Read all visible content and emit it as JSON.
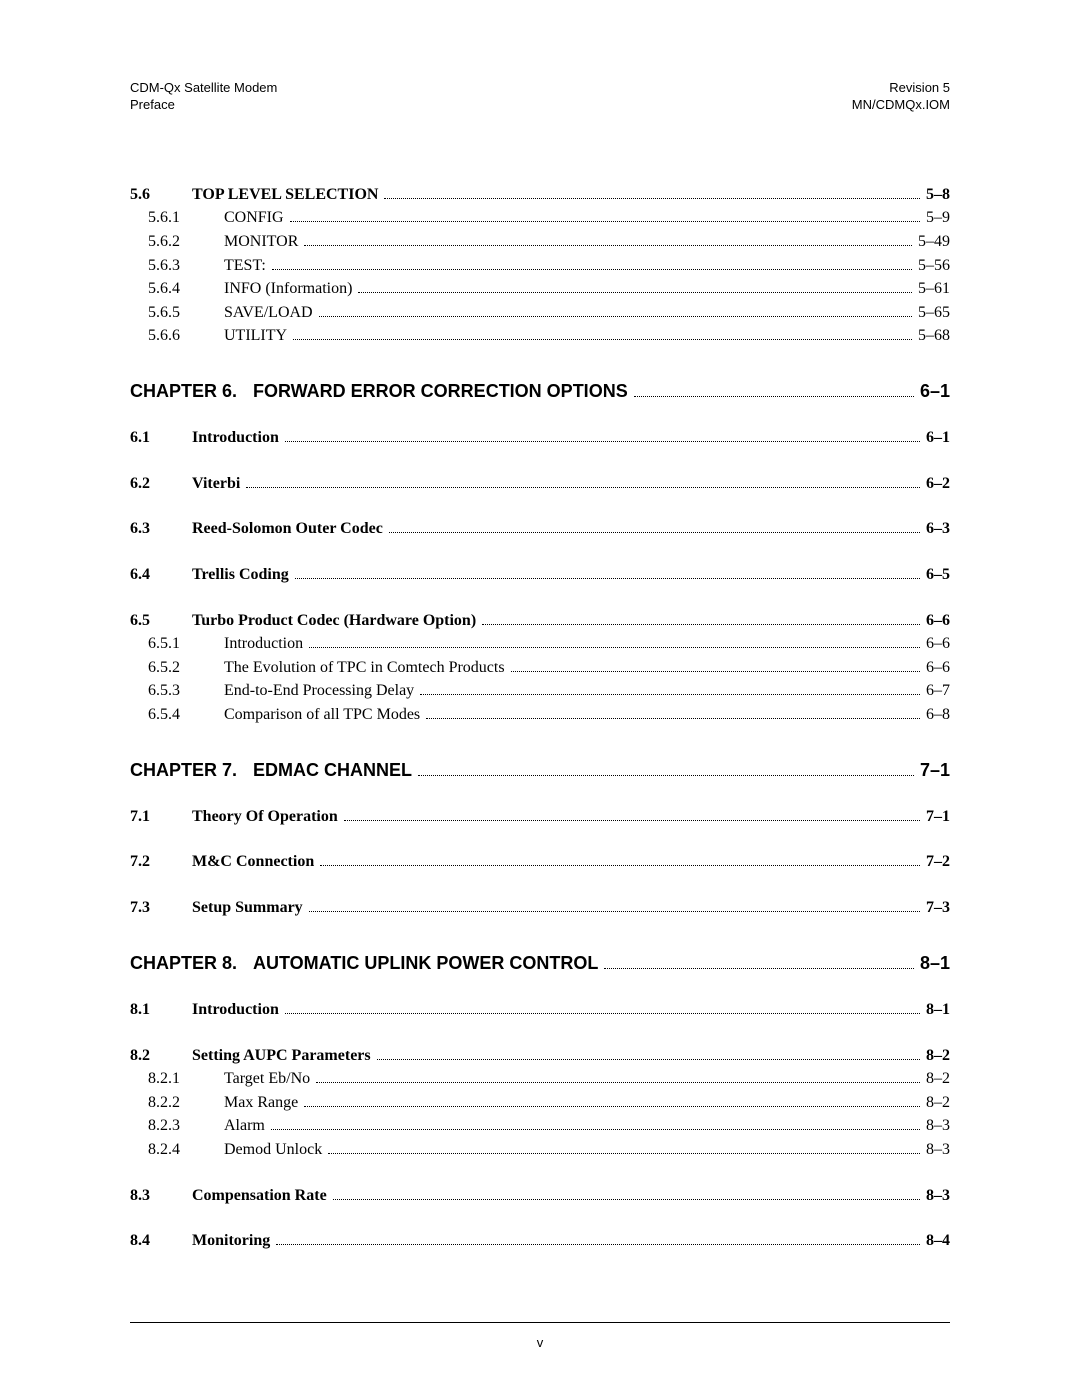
{
  "header": {
    "left_line1": "CDM-Qx Satellite Modem",
    "left_line2": "Preface",
    "right_line1": "Revision 5",
    "right_line2": "MN/CDMQx.IOM"
  },
  "entries": [
    {
      "type": "line",
      "indent": 0,
      "bold": true,
      "num": "5.6",
      "text": "TOP LEVEL SELECTION",
      "page": "5–8"
    },
    {
      "type": "line",
      "indent": 1,
      "bold": false,
      "num": "5.6.1",
      "text": "CONFIG",
      "page": "5–9"
    },
    {
      "type": "line",
      "indent": 1,
      "bold": false,
      "num": "5.6.2",
      "text": "MONITOR",
      "page": "5–49"
    },
    {
      "type": "line",
      "indent": 1,
      "bold": false,
      "num": "5.6.3",
      "text": "TEST:",
      "page": "5–56"
    },
    {
      "type": "line",
      "indent": 1,
      "bold": false,
      "num": "5.6.4",
      "text": "INFO (Information)",
      "page": "5–61"
    },
    {
      "type": "line",
      "indent": 1,
      "bold": false,
      "num": "5.6.5",
      "text": "SAVE/LOAD",
      "page": "5–65"
    },
    {
      "type": "line",
      "indent": 1,
      "bold": false,
      "num": "5.6.6",
      "text": "UTILITY",
      "page": "5–68"
    },
    {
      "type": "gap",
      "size": "large"
    },
    {
      "type": "chapter",
      "num": "CHAPTER 6.",
      "text": "FORWARD ERROR CORRECTION OPTIONS",
      "page": "6–1"
    },
    {
      "type": "gap",
      "size": "med"
    },
    {
      "type": "line",
      "indent": 0,
      "bold": true,
      "num": "6.1",
      "text": "Introduction",
      "page": "6–1"
    },
    {
      "type": "gap",
      "size": "med"
    },
    {
      "type": "line",
      "indent": 0,
      "bold": true,
      "num": "6.2",
      "text": "Viterbi",
      "page": "6–2"
    },
    {
      "type": "gap",
      "size": "med"
    },
    {
      "type": "line",
      "indent": 0,
      "bold": true,
      "num": "6.3",
      "text": "Reed-Solomon Outer Codec",
      "page": "6–3"
    },
    {
      "type": "gap",
      "size": "med"
    },
    {
      "type": "line",
      "indent": 0,
      "bold": true,
      "num": "6.4",
      "text": "Trellis Coding",
      "page": "6–5"
    },
    {
      "type": "gap",
      "size": "med"
    },
    {
      "type": "line",
      "indent": 0,
      "bold": true,
      "num": "6.5",
      "text": "Turbo Product Codec (Hardware Option)",
      "page": "6–6"
    },
    {
      "type": "line",
      "indent": 1,
      "bold": false,
      "num": "6.5.1",
      "text": "Introduction",
      "page": "6–6"
    },
    {
      "type": "line",
      "indent": 1,
      "bold": false,
      "num": "6.5.2",
      "text": "The Evolution of TPC in Comtech Products",
      "page": "6–6"
    },
    {
      "type": "line",
      "indent": 1,
      "bold": false,
      "num": "6.5.3",
      "text": "End-to-End Processing Delay",
      "page": "6–7"
    },
    {
      "type": "line",
      "indent": 1,
      "bold": false,
      "num": "6.5.4",
      "text": "Comparison of all TPC Modes",
      "page": "6–8"
    },
    {
      "type": "gap",
      "size": "large"
    },
    {
      "type": "chapter",
      "num": "CHAPTER 7.",
      "text": "EDMAC CHANNEL",
      "page": "7–1"
    },
    {
      "type": "gap",
      "size": "med"
    },
    {
      "type": "line",
      "indent": 0,
      "bold": true,
      "num": "7.1",
      "text": "Theory Of Operation",
      "page": "7–1"
    },
    {
      "type": "gap",
      "size": "med"
    },
    {
      "type": "line",
      "indent": 0,
      "bold": true,
      "num": "7.2",
      "text": "M&C Connection",
      "page": "7–2"
    },
    {
      "type": "gap",
      "size": "med"
    },
    {
      "type": "line",
      "indent": 0,
      "bold": true,
      "num": "7.3",
      "text": "Setup Summary",
      "page": "7–3"
    },
    {
      "type": "gap",
      "size": "large"
    },
    {
      "type": "chapter",
      "num": "CHAPTER 8.",
      "text": "AUTOMATIC UPLINK POWER CONTROL",
      "page": "8–1"
    },
    {
      "type": "gap",
      "size": "med"
    },
    {
      "type": "line",
      "indent": 0,
      "bold": true,
      "num": "8.1",
      "text": "Introduction",
      "page": "8–1"
    },
    {
      "type": "gap",
      "size": "med"
    },
    {
      "type": "line",
      "indent": 0,
      "bold": true,
      "num": "8.2",
      "text": "Setting AUPC Parameters",
      "page": "8–2"
    },
    {
      "type": "line",
      "indent": 1,
      "bold": false,
      "num": "8.2.1",
      "text": "Target Eb/No",
      "page": "8–2"
    },
    {
      "type": "line",
      "indent": 1,
      "bold": false,
      "num": "8.2.2",
      "text": "Max Range",
      "page": "8–2"
    },
    {
      "type": "line",
      "indent": 1,
      "bold": false,
      "num": "8.2.3",
      "text": "Alarm",
      "page": "8–3"
    },
    {
      "type": "line",
      "indent": 1,
      "bold": false,
      "num": "8.2.4",
      "text": "Demod Unlock",
      "page": "8–3"
    },
    {
      "type": "gap",
      "size": "med"
    },
    {
      "type": "line",
      "indent": 0,
      "bold": true,
      "num": "8.3",
      "text": "Compensation Rate",
      "page": "8–3"
    },
    {
      "type": "gap",
      "size": "med"
    },
    {
      "type": "line",
      "indent": 0,
      "bold": true,
      "num": "8.4",
      "text": "Monitoring",
      "page": "8–4"
    }
  ],
  "footer": {
    "page_num": "v"
  }
}
